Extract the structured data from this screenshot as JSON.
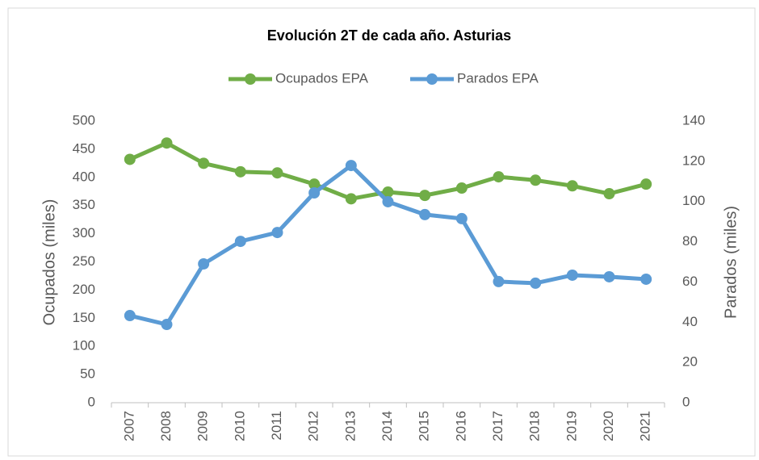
{
  "chart_data": {
    "type": "line",
    "title": "Evolución 2T de cada año. Asturias",
    "ylabel": "Ocupados (miles)",
    "y2label": "Parados (miles)",
    "categories": [
      "2007",
      "2008",
      "2009",
      "2010",
      "2011",
      "2012",
      "2013",
      "2014",
      "2015",
      "2016",
      "2017",
      "2018",
      "2019",
      "2020",
      "2021"
    ],
    "series": [
      {
        "name": "Ocupados EPA",
        "color": "#70ad47",
        "values": [
          432,
          461,
          425,
          410,
          408,
          388,
          362,
          374,
          368,
          381,
          401,
          395,
          385,
          371,
          388
        ]
      },
      {
        "name": "Parados EPA",
        "color": "#5b9bd5",
        "axis": "y2",
        "values": [
          43.3,
          38.9,
          69,
          80.2,
          84.6,
          104.3,
          117.9,
          99.9,
          93.5,
          91.5,
          60.2,
          59.4,
          63.4,
          62.6,
          61.4
        ]
      }
    ],
    "ylim": [
      0,
      500
    ],
    "yticks": [
      0,
      50,
      100,
      150,
      200,
      250,
      300,
      350,
      400,
      450,
      500
    ],
    "y2lim": [
      0,
      140
    ],
    "y2ticks": [
      0,
      20,
      40,
      60,
      80,
      100,
      120,
      140
    ],
    "grid": false,
    "legend": "top"
  }
}
